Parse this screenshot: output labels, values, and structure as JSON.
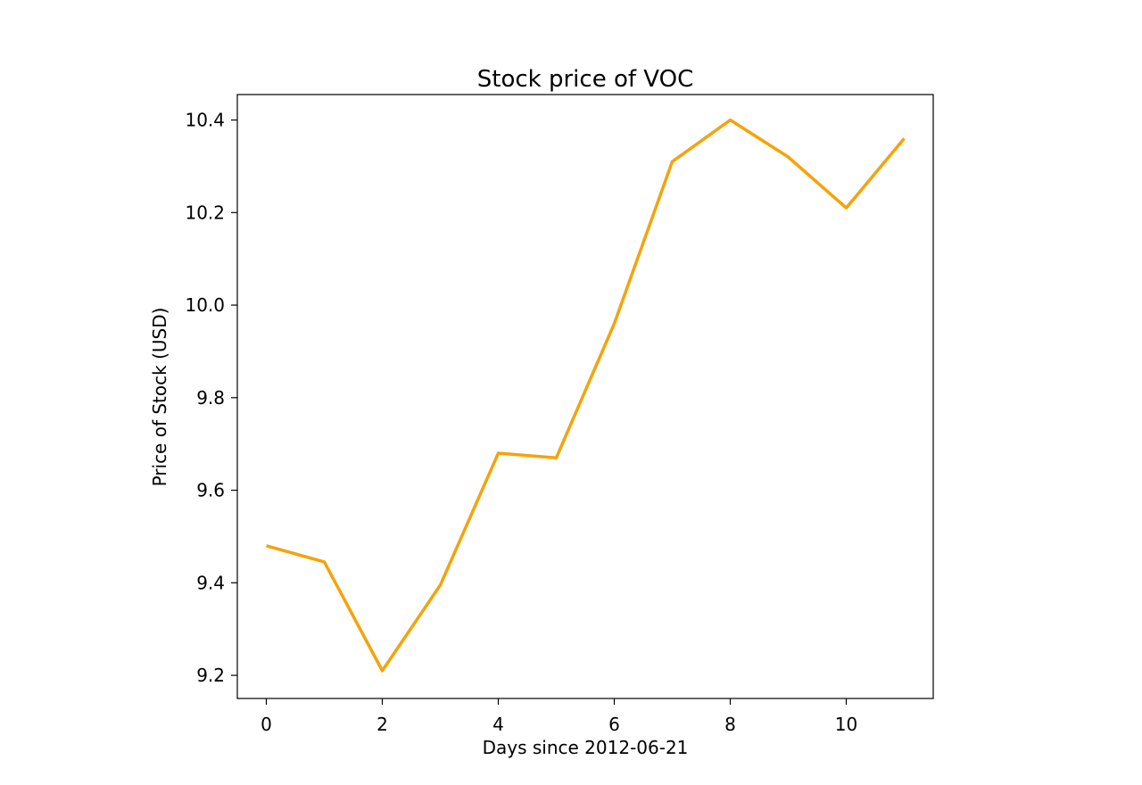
{
  "chart_data": {
    "type": "line",
    "title": "Stock price of VOC",
    "xlabel": "Days since 2012-06-21",
    "ylabel": "Price of Stock (USD)",
    "xlim": [
      -0.5,
      11.5
    ],
    "ylim": [
      9.15,
      10.455
    ],
    "xticks": [
      0,
      2,
      4,
      6,
      8,
      10
    ],
    "xtick_labels": [
      "0",
      "2",
      "4",
      "6",
      "8",
      "10"
    ],
    "yticks": [
      9.2,
      9.4,
      9.6,
      9.8,
      10.0,
      10.2,
      10.4
    ],
    "ytick_labels": [
      "9.2",
      "9.4",
      "9.6",
      "9.8",
      "10.0",
      "10.2",
      "10.4"
    ],
    "grid": false,
    "series": [
      {
        "color": "#f5a30a",
        "x": [
          0,
          1,
          2,
          3,
          4,
          5,
          6,
          7,
          8,
          9,
          10,
          11
        ],
        "y": [
          9.48,
          9.445,
          9.21,
          9.395,
          9.68,
          9.67,
          9.96,
          10.31,
          10.4,
          10.32,
          10.21,
          10.36
        ]
      }
    ]
  }
}
